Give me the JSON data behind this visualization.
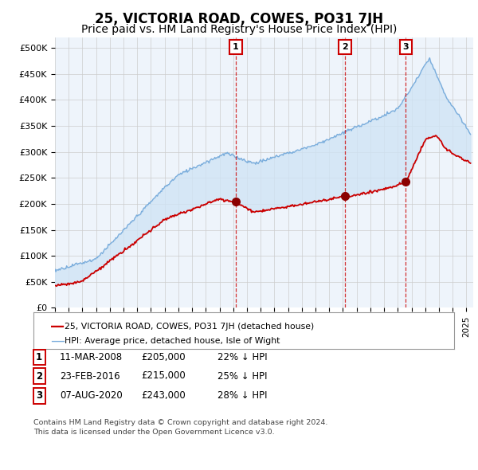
{
  "title": "25, VICTORIA ROAD, COWES, PO31 7JH",
  "subtitle": "Price paid vs. HM Land Registry's House Price Index (HPI)",
  "ylabel_ticks": [
    "£0",
    "£50K",
    "£100K",
    "£150K",
    "£200K",
    "£250K",
    "£300K",
    "£350K",
    "£400K",
    "£450K",
    "£500K"
  ],
  "ytick_values": [
    0,
    50000,
    100000,
    150000,
    200000,
    250000,
    300000,
    350000,
    400000,
    450000,
    500000
  ],
  "xlim_start": 1995.0,
  "xlim_end": 2025.5,
  "ylim": [
    0,
    520000
  ],
  "sales": [
    {
      "label": "1",
      "date_str": "11-MAR-2008",
      "price": 205000,
      "pct": "22%",
      "year": 2008.19
    },
    {
      "label": "2",
      "date_str": "23-FEB-2016",
      "price": 215000,
      "pct": "25%",
      "year": 2016.14
    },
    {
      "label": "3",
      "date_str": "07-AUG-2020",
      "price": 243000,
      "pct": "28%",
      "year": 2020.59
    }
  ],
  "legend_line1": "25, VICTORIA ROAD, COWES, PO31 7JH (detached house)",
  "legend_line2": "HPI: Average price, detached house, Isle of Wight",
  "footnote1": "Contains HM Land Registry data © Crown copyright and database right 2024.",
  "footnote2": "This data is licensed under the Open Government Licence v3.0.",
  "hpi_color": "#7aaddc",
  "price_color": "#cc0000",
  "fill_color": "#d0e4f5",
  "bg_color": "#eef4fb",
  "grid_color": "#cccccc",
  "title_fontsize": 12,
  "subtitle_fontsize": 10
}
